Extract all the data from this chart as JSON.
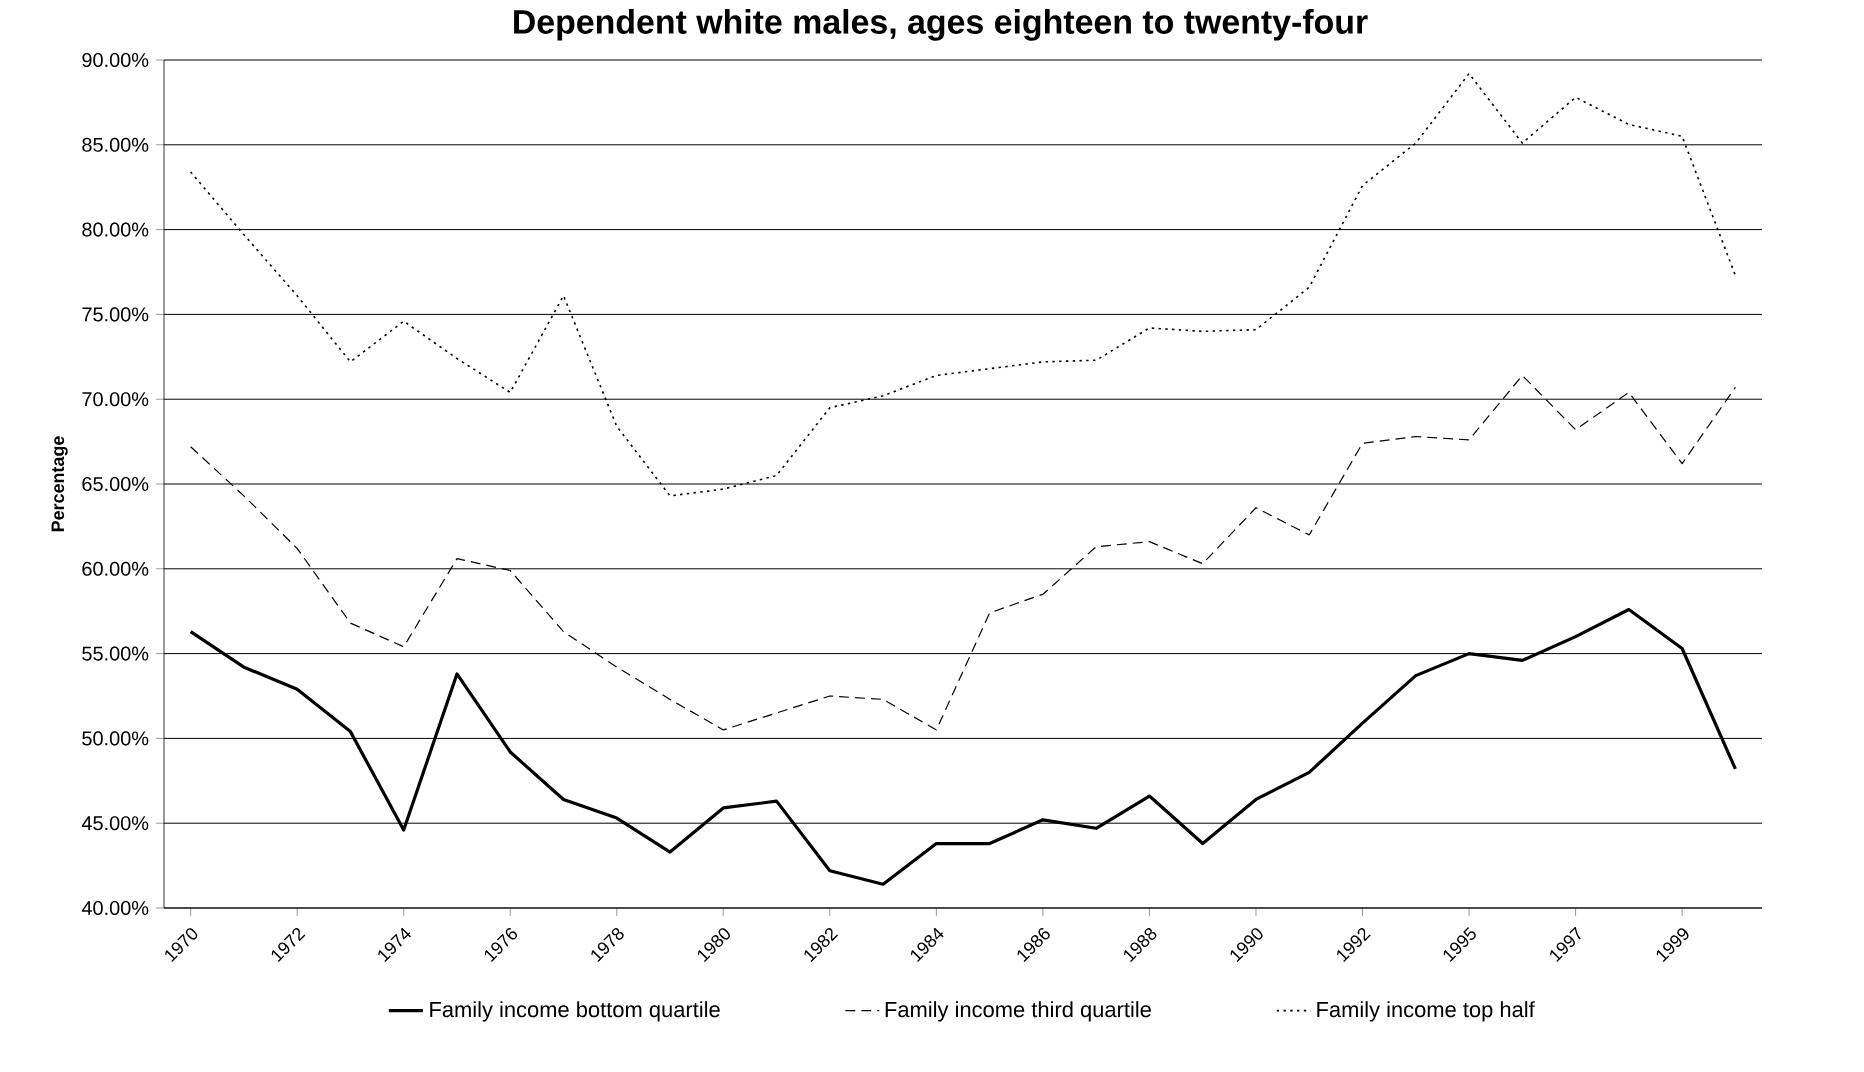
{
  "chart_data": {
    "type": "line",
    "title": "Dependent white males, ages eighteen to twenty-four",
    "ylabel": "Percentage",
    "categories": [
      "1970",
      null,
      "1972",
      null,
      "1974",
      null,
      "1976",
      null,
      "1978",
      null,
      "1980",
      null,
      "1982",
      null,
      "1984",
      null,
      "1986",
      null,
      "1988",
      null,
      "1990",
      null,
      "1992",
      null,
      "1995",
      null,
      "1997",
      null,
      "1999",
      null
    ],
    "series": [
      {
        "name": "Family income bottom quartile",
        "color": "#000000",
        "line_style": "solid",
        "values": [
          56.3,
          54.2,
          52.9,
          50.4,
          44.6,
          53.8,
          49.2,
          46.4,
          45.3,
          43.3,
          45.9,
          46.3,
          42.2,
          41.4,
          43.8,
          43.8,
          45.2,
          44.7,
          46.6,
          43.8,
          46.4,
          48.0,
          50.9,
          53.7,
          55.0,
          54.6,
          56.0,
          57.6,
          55.3,
          48.2
        ]
      },
      {
        "name": "Family income third quartile",
        "color": "#000000",
        "line_style": "dashed",
        "values": [
          67.2,
          64.3,
          61.2,
          56.8,
          55.4,
          60.6,
          59.9,
          56.3,
          54.2,
          52.3,
          50.5,
          51.5,
          52.5,
          52.3,
          50.5,
          57.4,
          58.5,
          61.3,
          61.6,
          60.3,
          63.6,
          62.0,
          67.4,
          67.8,
          67.6,
          71.4,
          68.2,
          70.4,
          66.2,
          70.7
        ]
      },
      {
        "name": "Family income top half",
        "color": "#000000",
        "line_style": "dotted",
        "values": [
          83.4,
          79.7,
          76.1,
          72.2,
          74.6,
          72.4,
          70.4,
          76.1,
          68.4,
          64.3,
          64.7,
          65.5,
          69.5,
          70.2,
          71.4,
          71.8,
          72.2,
          72.3,
          74.2,
          74.0,
          74.1,
          76.6,
          82.6,
          85.1,
          89.2,
          85.1,
          87.8,
          86.2,
          85.5,
          77.3
        ]
      }
    ],
    "ylim": [
      40,
      90
    ],
    "yticks": [
      {
        "value": 40,
        "label": "40.00%"
      },
      {
        "value": 45,
        "label": "45.00%"
      },
      {
        "value": 50,
        "label": "50.00%"
      },
      {
        "value": 55,
        "label": "55.00%"
      },
      {
        "value": 60,
        "label": "60.00%"
      },
      {
        "value": 65,
        "label": "65.00%"
      },
      {
        "value": 70,
        "label": "70.00%"
      },
      {
        "value": 75,
        "label": "75.00%"
      },
      {
        "value": 80,
        "label": "80.00%"
      },
      {
        "value": 85,
        "label": "85.00%"
      },
      {
        "value": 90,
        "label": "90.00%"
      }
    ],
    "grid": "y",
    "legend": "bottom"
  }
}
